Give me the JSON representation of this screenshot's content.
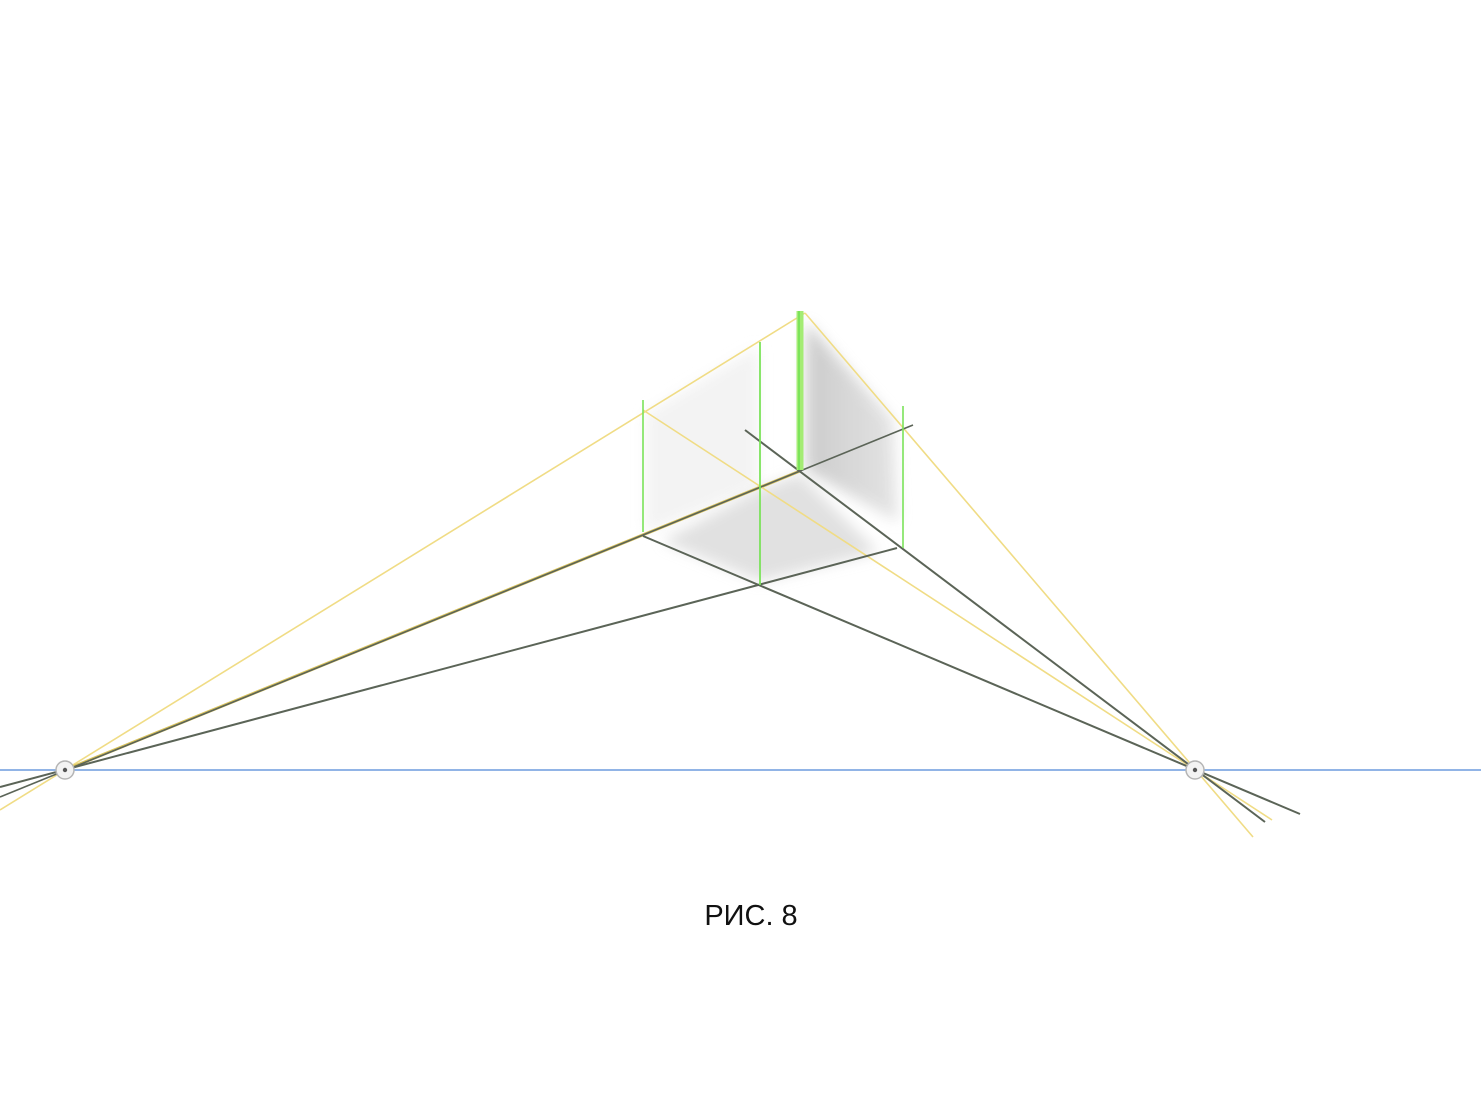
{
  "caption": "РИС. 8",
  "colors": {
    "background": "#ffffff",
    "horizon": "#4f86d8",
    "construction_dark": "#5b6457",
    "construction_yellow": "#f0dc85",
    "vertical_green": "#7be35a",
    "vertical_green_thick": "#a4ec74",
    "shade": "#bfbfbf",
    "vanishing_point_fill": "#f3f3f3",
    "vanishing_point_stroke": "#b5b5b5"
  }
}
